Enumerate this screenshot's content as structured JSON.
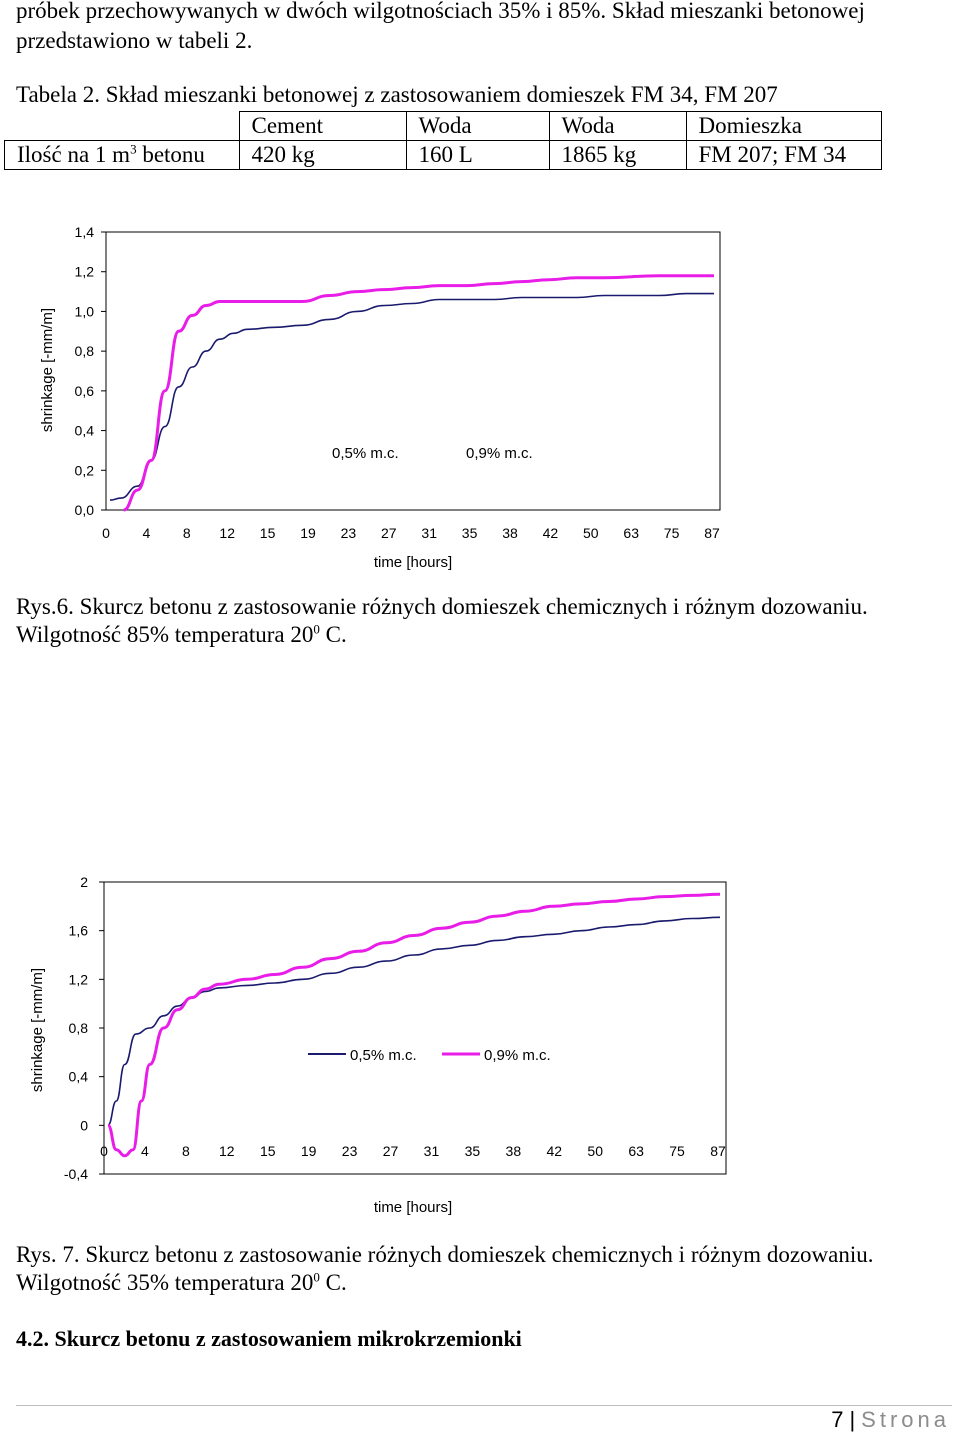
{
  "intro": {
    "line1": "próbek przechowywanych w dwóch wilgotnościach 35% i 85%. Skład mieszanki betonowej",
    "line2": "przedstawiono w tabeli 2."
  },
  "table2": {
    "caption": "Tabela 2. Skład mieszanki betonowej z zastosowaniem domieszek FM 34, FM 207",
    "headers": [
      "Cement",
      "Woda",
      "Woda",
      "Domieszka"
    ],
    "row_label": "Ilość na 1 m",
    "row_label_sup": "3",
    "row_label_tail": " betonu",
    "values": [
      "420 kg",
      "160 L",
      "1865 kg",
      "FM 207; FM 34"
    ]
  },
  "chart_data": [
    {
      "type": "line",
      "ylabel": "shrinkage [-mm/m]",
      "xlabel": "time [hours]",
      "y_ticks": [
        "1,4",
        "1,2",
        "1,0",
        "0,8",
        "0,6",
        "0,4",
        "0,2",
        "0,0"
      ],
      "ylim": [
        0,
        1.4
      ],
      "x_ticks": [
        "0",
        "4",
        "8",
        "12",
        "15",
        "19",
        "23",
        "27",
        "31",
        "35",
        "38",
        "42",
        "50",
        "63",
        "75",
        "87"
      ],
      "legend_placement": "inside-center",
      "series": [
        {
          "name": "0,5%  m.c.",
          "color": "#1a1a6e",
          "values": [
            [
              0,
              0.05
            ],
            [
              0.4,
              0.06
            ],
            [
              1,
              0.12
            ],
            [
              1.5,
              0.25
            ],
            [
              2,
              0.42
            ],
            [
              2.5,
              0.62
            ],
            [
              3,
              0.72
            ],
            [
              3.5,
              0.8
            ],
            [
              4,
              0.86
            ],
            [
              4.5,
              0.89
            ],
            [
              5,
              0.91
            ],
            [
              6,
              0.92
            ],
            [
              7,
              0.93
            ],
            [
              8,
              0.96
            ],
            [
              9,
              1.0
            ],
            [
              10,
              1.03
            ],
            [
              11,
              1.04
            ],
            [
              12,
              1.06
            ],
            [
              13,
              1.06
            ],
            [
              14,
              1.06
            ],
            [
              15,
              1.07
            ],
            [
              16,
              1.07
            ],
            [
              17,
              1.07
            ],
            [
              18,
              1.08
            ],
            [
              20,
              1.08
            ],
            [
              21,
              1.09
            ],
            [
              22,
              1.09
            ]
          ]
        },
        {
          "name": "0,9%  m.c.",
          "color": "#e81ee8",
          "values": [
            [
              0.5,
              0.0
            ],
            [
              1,
              0.1
            ],
            [
              1.5,
              0.25
            ],
            [
              2,
              0.6
            ],
            [
              2.5,
              0.9
            ],
            [
              3,
              0.98
            ],
            [
              3.5,
              1.03
            ],
            [
              4,
              1.05
            ],
            [
              4.5,
              1.05
            ],
            [
              5,
              1.05
            ],
            [
              6,
              1.05
            ],
            [
              7,
              1.05
            ],
            [
              8,
              1.08
            ],
            [
              9,
              1.1
            ],
            [
              10,
              1.11
            ],
            [
              11,
              1.12
            ],
            [
              12,
              1.13
            ],
            [
              13,
              1.13
            ],
            [
              14,
              1.14
            ],
            [
              15,
              1.15
            ],
            [
              16,
              1.16
            ],
            [
              17,
              1.17
            ],
            [
              18,
              1.17
            ],
            [
              20,
              1.18
            ],
            [
              22,
              1.18
            ]
          ]
        }
      ]
    },
    {
      "type": "line",
      "ylabel": "shrinkage [-mm/m]",
      "xlabel": "time [hours]",
      "y_ticks": [
        "2",
        "1,6",
        "1,2",
        "0,8",
        "0,4",
        "0",
        "-0,4"
      ],
      "ylim": [
        -0.4,
        2
      ],
      "x_ticks": [
        "0",
        "4",
        "8",
        "12",
        "15",
        "19",
        "23",
        "27",
        "31",
        "35",
        "38",
        "42",
        "50",
        "63",
        "75",
        "87"
      ],
      "legend_placement": "inside-center",
      "series": [
        {
          "name": "0,5% m.c.",
          "color": "#1a1a6e",
          "values": [
            [
              0,
              0.0
            ],
            [
              0.3,
              0.2
            ],
            [
              0.6,
              0.5
            ],
            [
              1,
              0.75
            ],
            [
              1.5,
              0.8
            ],
            [
              2,
              0.9
            ],
            [
              2.5,
              0.98
            ],
            [
              3,
              1.05
            ],
            [
              3.5,
              1.1
            ],
            [
              4,
              1.13
            ],
            [
              5,
              1.15
            ],
            [
              6,
              1.17
            ],
            [
              7,
              1.2
            ],
            [
              8,
              1.25
            ],
            [
              9,
              1.3
            ],
            [
              10,
              1.35
            ],
            [
              11,
              1.4
            ],
            [
              12,
              1.45
            ],
            [
              13,
              1.48
            ],
            [
              14,
              1.52
            ],
            [
              15,
              1.55
            ],
            [
              16,
              1.57
            ],
            [
              17,
              1.6
            ],
            [
              18,
              1.63
            ],
            [
              19,
              1.65
            ],
            [
              20,
              1.68
            ],
            [
              21,
              1.7
            ],
            [
              22,
              1.71
            ]
          ]
        },
        {
          "name": "0,9% m.c.",
          "color": "#e81ee8",
          "values": [
            [
              0,
              0.0
            ],
            [
              0.3,
              -0.2
            ],
            [
              0.6,
              -0.25
            ],
            [
              0.9,
              -0.2
            ],
            [
              1.2,
              0.2
            ],
            [
              1.5,
              0.5
            ],
            [
              2,
              0.8
            ],
            [
              2.5,
              0.95
            ],
            [
              3,
              1.05
            ],
            [
              3.5,
              1.12
            ],
            [
              4,
              1.16
            ],
            [
              5,
              1.2
            ],
            [
              6,
              1.24
            ],
            [
              7,
              1.3
            ],
            [
              8,
              1.37
            ],
            [
              9,
              1.43
            ],
            [
              10,
              1.5
            ],
            [
              11,
              1.56
            ],
            [
              12,
              1.62
            ],
            [
              13,
              1.67
            ],
            [
              14,
              1.72
            ],
            [
              15,
              1.76
            ],
            [
              16,
              1.8
            ],
            [
              17,
              1.82
            ],
            [
              18,
              1.84
            ],
            [
              19,
              1.86
            ],
            [
              20,
              1.88
            ],
            [
              21,
              1.89
            ],
            [
              22,
              1.9
            ]
          ]
        }
      ]
    }
  ],
  "fig6": {
    "line1": "Rys.6. Skurcz betonu z zastosowanie różnych domieszek chemicznych i różnym dozowaniu.",
    "line2a": "Wilgotność 85% temperatura 20",
    "line2sup": "0",
    "line2b": " C."
  },
  "fig7": {
    "line1": "Rys. 7. Skurcz betonu z zastosowanie różnych domieszek chemicznych i różnym dozowaniu.",
    "line2a": "Wilgotność 35% temperatura 20",
    "line2sup": "0",
    "line2b": " C."
  },
  "section_heading": "4.2. Skurcz betonu z zastosowaniem mikrokrzemionki",
  "footer": {
    "page_number": "7",
    "separator": "|",
    "word": "Strona"
  }
}
